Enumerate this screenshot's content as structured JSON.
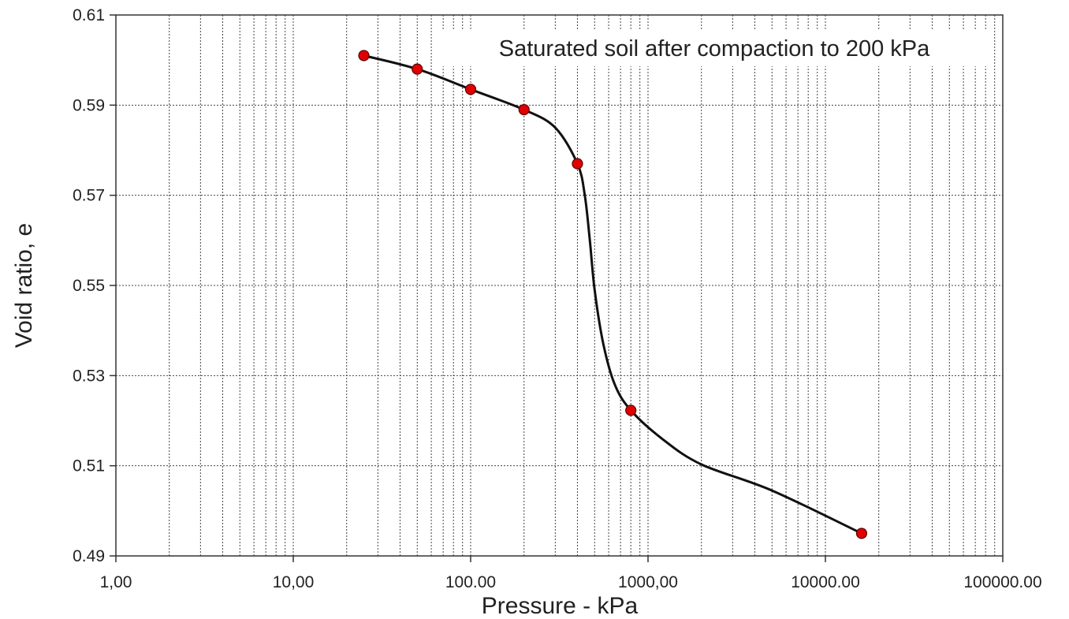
{
  "chart_data": {
    "type": "line",
    "x_scale": "log",
    "xlim": [
      1,
      100000
    ],
    "ylim": [
      0.49,
      0.61
    ],
    "xlabel": "Pressure - kPa",
    "ylabel": "Void ratio, e",
    "x_tick_values": [
      1,
      10,
      100,
      1000,
      10000,
      100000
    ],
    "x_tick_labels": [
      "1,00",
      "10,00",
      "100.00",
      "1000,00",
      "10000.00",
      "100000.00"
    ],
    "y_tick_values": [
      0.49,
      0.51,
      0.53,
      0.55,
      0.57,
      0.59,
      0.61
    ],
    "y_tick_labels": [
      "0.49",
      "0.51",
      "0.53",
      "0.55",
      "0.57",
      "0.59",
      "0.61"
    ],
    "grid": true,
    "annotation": "Saturated soil after compaction to 200 kPa",
    "marker_color": "#e00000",
    "line_color": "#111111",
    "series": [
      {
        "x": [
          25,
          50,
          100,
          200,
          400,
          800,
          16000
        ],
        "y": [
          0.601,
          0.598,
          0.5935,
          0.589,
          0.577,
          0.5223,
          0.495
        ]
      }
    ],
    "curve_path": [
      [
        25,
        0.601
      ],
      [
        50,
        0.598
      ],
      [
        100,
        0.5935
      ],
      [
        200,
        0.589
      ],
      [
        300,
        0.585
      ],
      [
        400,
        0.577
      ],
      [
        440,
        0.57
      ],
      [
        470,
        0.56
      ],
      [
        500,
        0.549
      ],
      [
        560,
        0.537
      ],
      [
        650,
        0.528
      ],
      [
        800,
        0.5223
      ],
      [
        1200,
        0.516
      ],
      [
        2000,
        0.5103
      ],
      [
        5000,
        0.5045
      ],
      [
        16000,
        0.495
      ]
    ]
  }
}
